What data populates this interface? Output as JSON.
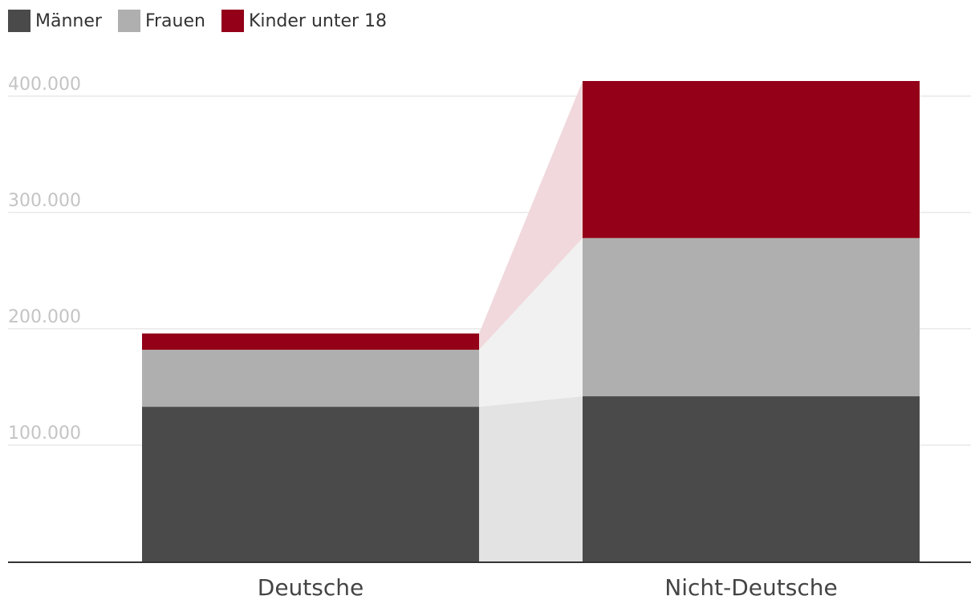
{
  "colors": {
    "maenner": "#4a4a4a",
    "frauen": "#afafaf",
    "kinder": "#930018",
    "grid": "#dddddd",
    "axis": "#333333",
    "connector_maenner": "#e3e3e3",
    "connector_frauen": "#f1f1f1",
    "connector_kinder": "#f0d8dc"
  },
  "legend": [
    {
      "label": "Männer",
      "color": "#4a4a4a"
    },
    {
      "label": "Frauen",
      "color": "#afafaf"
    },
    {
      "label": "Kinder unter 18",
      "color": "#930018"
    }
  ],
  "chart_data": {
    "type": "bar",
    "stacked": true,
    "categories": [
      "Deutsche",
      "Nicht-Deutsche"
    ],
    "series": [
      {
        "name": "Männer",
        "values": [
          133000,
          142000
        ]
      },
      {
        "name": "Frauen",
        "values": [
          49000,
          136000
        ]
      },
      {
        "name": "Kinder unter 18",
        "values": [
          14000,
          135000
        ]
      }
    ],
    "ylim": [
      0,
      413000
    ],
    "yticks": [
      100000,
      200000,
      300000,
      400000
    ],
    "ytick_labels": [
      "100.000",
      "200.000",
      "300.000",
      "400.000"
    ],
    "grid": true,
    "legend_position": "top-left",
    "xlabel": "",
    "ylabel": ""
  }
}
